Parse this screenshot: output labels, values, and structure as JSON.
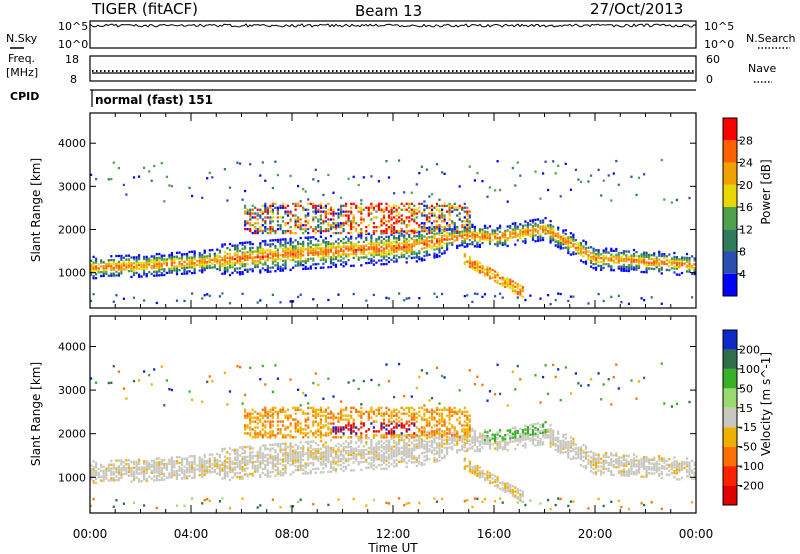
{
  "header": {
    "station": "TIGER (fitACF)",
    "beam": "Beam 13",
    "date": "27/Oct/2013"
  },
  "top_panels": {
    "nsky_label": "N.Sky",
    "nsearch_label": "N.Search",
    "noise_ticks_left": [
      "10^5",
      "10^0"
    ],
    "noise_ticks_right": [
      "10^5",
      "10^0"
    ],
    "freq_label_1": "Freq.",
    "freq_label_2": "[MHz]",
    "freq_ticks": [
      "18",
      "8"
    ],
    "nave_label": "Nave",
    "nave_ticks": [
      "60",
      "0"
    ],
    "cpid_label": "CPID",
    "cpid_value": "normal (fast) 151"
  },
  "chart_data": [
    {
      "type": "heatmap",
      "panel": "power",
      "x_ticks": [
        "00:00",
        "04:00",
        "08:00",
        "12:00",
        "16:00",
        "20:00",
        "00:00"
      ],
      "x_range_hours": [
        0,
        24
      ],
      "ylabel": "Slant Range [km]",
      "y_ticks": [
        1000,
        2000,
        3000,
        4000
      ],
      "ylim": [
        180,
        4700
      ],
      "colorbar": {
        "label": "Power [dB]",
        "ticks": [
          "4",
          "8",
          "12",
          "16",
          "20",
          "24",
          "28"
        ],
        "colors": [
          "#0000ff",
          "#2a4fb0",
          "#2e7c5a",
          "#4fa04a",
          "#e8d800",
          "#f0a000",
          "#ff6000",
          "#ff0000"
        ]
      },
      "ridge_km": [
        [
          0,
          1100
        ],
        [
          2,
          1140
        ],
        [
          4,
          1220
        ],
        [
          6,
          1320
        ],
        [
          8,
          1420
        ],
        [
          10,
          1500
        ],
        [
          12,
          1560
        ],
        [
          13,
          1620
        ],
        [
          14,
          1760
        ],
        [
          15,
          1850
        ],
        [
          16,
          1800
        ],
        [
          17,
          1900
        ],
        [
          18,
          2000
        ],
        [
          19,
          1650
        ],
        [
          20,
          1300
        ],
        [
          21,
          1280
        ],
        [
          22,
          1240
        ],
        [
          24,
          1150
        ]
      ]
    },
    {
      "type": "heatmap",
      "panel": "velocity",
      "x_ticks": [
        "00:00",
        "04:00",
        "08:00",
        "12:00",
        "16:00",
        "20:00",
        "00:00"
      ],
      "x_range_hours": [
        0,
        24
      ],
      "xlabel": "Time UT",
      "ylabel": "Slant Range [km]",
      "y_ticks": [
        1000,
        2000,
        3000,
        4000
      ],
      "ylim": [
        180,
        4700
      ],
      "colorbar": {
        "label": "Velocity [m s^-1]",
        "ticks": [
          "200",
          "100",
          "50",
          "15",
          "-15",
          "-50",
          "-100",
          "-200"
        ],
        "colors": [
          "#1028c8",
          "#2f6e48",
          "#38b028",
          "#9ad870",
          "#c8c8c0",
          "#f0b000",
          "#ff7000",
          "#ff2000",
          "#e00000"
        ]
      }
    }
  ]
}
